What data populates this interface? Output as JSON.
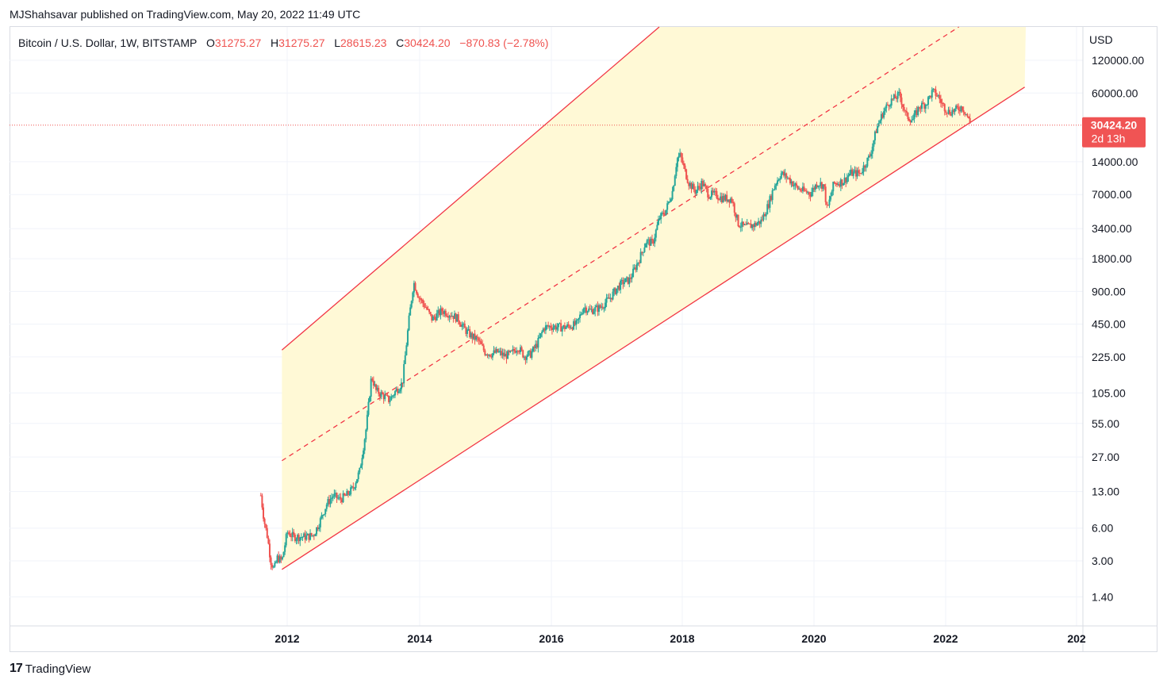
{
  "header": {
    "publisher_line": "MJShahsavar published on TradingView.com, May 20, 2022 11:49 UTC"
  },
  "legend": {
    "symbol": "Bitcoin / U.S. Dollar, 1W, BITSTAMP",
    "o_label": "O",
    "o_value": "31275.27",
    "h_label": "H",
    "h_value": "31275.27",
    "l_label": "L",
    "l_value": "28615.23",
    "c_label": "C",
    "c_value": "30424.20",
    "change": "−870.83 (−2.78%)"
  },
  "price_tag": {
    "price": "30424.20",
    "countdown": "2d 13h"
  },
  "footer": {
    "logo_glyph": "17",
    "brand": "TradingView"
  },
  "colors": {
    "up": "#26a69a",
    "down": "#ef5350",
    "channel_line": "#f23645",
    "channel_fill": "#fff9d6",
    "price_tag_bg": "#f05454",
    "grid": "#f0f3fa"
  },
  "chart_data": {
    "type": "candlestick",
    "y_scale": "log",
    "y_unit": "USD",
    "y_ticks": [
      "120000.00",
      "60000.00",
      "14000.00",
      "7000.00",
      "3400.00",
      "1800.00",
      "900.00",
      "450.00",
      "225.00",
      "105.00",
      "55.00",
      "27.00",
      "13.00",
      "6.00",
      "3.00",
      "1.40"
    ],
    "x_ticks": [
      "2012",
      "2014",
      "2016",
      "2018",
      "2020",
      "2022",
      "202"
    ],
    "x_range": [
      2010.5,
      2023.9
    ],
    "last_price": 30424.2,
    "series": [
      {
        "name": "BTCUSD",
        "points": [
          [
            2011.6,
            12
          ],
          [
            2011.65,
            7
          ],
          [
            2011.7,
            5
          ],
          [
            2011.75,
            3
          ],
          [
            2011.8,
            2.5
          ],
          [
            2011.85,
            3.2
          ],
          [
            2011.92,
            3.0
          ],
          [
            2012.0,
            5.5
          ],
          [
            2012.1,
            5
          ],
          [
            2012.2,
            5
          ],
          [
            2012.3,
            5
          ],
          [
            2012.4,
            5.2
          ],
          [
            2012.5,
            7
          ],
          [
            2012.6,
            10
          ],
          [
            2012.7,
            12
          ],
          [
            2012.8,
            11
          ],
          [
            2012.9,
            12
          ],
          [
            2013.0,
            14
          ],
          [
            2013.1,
            20
          ],
          [
            2013.2,
            50
          ],
          [
            2013.28,
            150
          ],
          [
            2013.35,
            110
          ],
          [
            2013.45,
            100
          ],
          [
            2013.55,
            90
          ],
          [
            2013.65,
            110
          ],
          [
            2013.75,
            130
          ],
          [
            2013.85,
            500
          ],
          [
            2013.92,
            1100
          ],
          [
            2014.0,
            800
          ],
          [
            2014.1,
            650
          ],
          [
            2014.2,
            500
          ],
          [
            2014.35,
            600
          ],
          [
            2014.5,
            550
          ],
          [
            2014.6,
            500
          ],
          [
            2014.7,
            400
          ],
          [
            2014.8,
            350
          ],
          [
            2014.9,
            320
          ],
          [
            2015.0,
            250
          ],
          [
            2015.1,
            240
          ],
          [
            2015.2,
            250
          ],
          [
            2015.3,
            230
          ],
          [
            2015.4,
            240
          ],
          [
            2015.5,
            280
          ],
          [
            2015.6,
            230
          ],
          [
            2015.7,
            240
          ],
          [
            2015.8,
            300
          ],
          [
            2015.9,
            420
          ],
          [
            2016.0,
            430
          ],
          [
            2016.2,
            420
          ],
          [
            2016.4,
            450
          ],
          [
            2016.5,
            650
          ],
          [
            2016.6,
            600
          ],
          [
            2016.75,
            640
          ],
          [
            2016.9,
            780
          ],
          [
            2017.0,
            950
          ],
          [
            2017.1,
            1100
          ],
          [
            2017.2,
            1150
          ],
          [
            2017.35,
            1800
          ],
          [
            2017.45,
            2600
          ],
          [
            2017.55,
            2500
          ],
          [
            2017.65,
            4200
          ],
          [
            2017.75,
            5000
          ],
          [
            2017.85,
            7500
          ],
          [
            2017.92,
            15000
          ],
          [
            2017.97,
            16000
          ],
          [
            2018.05,
            11000
          ],
          [
            2018.1,
            9000
          ],
          [
            2018.2,
            7500
          ],
          [
            2018.3,
            9000
          ],
          [
            2018.4,
            7000
          ],
          [
            2018.5,
            7000
          ],
          [
            2018.6,
            6500
          ],
          [
            2018.75,
            6400
          ],
          [
            2018.85,
            3800
          ],
          [
            2018.95,
            3500
          ],
          [
            2019.1,
            3700
          ],
          [
            2019.2,
            4000
          ],
          [
            2019.3,
            5500
          ],
          [
            2019.4,
            8500
          ],
          [
            2019.5,
            11000
          ],
          [
            2019.6,
            10000
          ],
          [
            2019.75,
            8000
          ],
          [
            2019.85,
            7500
          ],
          [
            2019.95,
            7200
          ],
          [
            2020.05,
            9000
          ],
          [
            2020.15,
            8500
          ],
          [
            2020.2,
            5000
          ],
          [
            2020.3,
            8800
          ],
          [
            2020.45,
            9300
          ],
          [
            2020.55,
            11000
          ],
          [
            2020.7,
            11000
          ],
          [
            2020.85,
            16000
          ],
          [
            2020.95,
            28000
          ],
          [
            2021.05,
            40000
          ],
          [
            2021.15,
            50000
          ],
          [
            2021.3,
            58000
          ],
          [
            2021.4,
            37000
          ],
          [
            2021.5,
            34000
          ],
          [
            2021.6,
            45000
          ],
          [
            2021.7,
            48000
          ],
          [
            2021.8,
            62000
          ],
          [
            2021.88,
            57000
          ],
          [
            2021.95,
            47000
          ],
          [
            2022.05,
            40000
          ],
          [
            2022.15,
            42000
          ],
          [
            2022.25,
            45000
          ],
          [
            2022.32,
            38000
          ],
          [
            2022.38,
            30424.2
          ]
        ]
      }
    ],
    "channel": {
      "upper": [
        [
          2011.92,
          260
        ],
        [
          2017.65,
          130000
        ]
      ],
      "middle": [
        [
          2011.92,
          25
        ],
        [
          2022.2,
          130000
        ]
      ],
      "lower": [
        [
          2011.92,
          2.5
        ],
        [
          2023.2,
          68000
        ]
      ]
    }
  }
}
